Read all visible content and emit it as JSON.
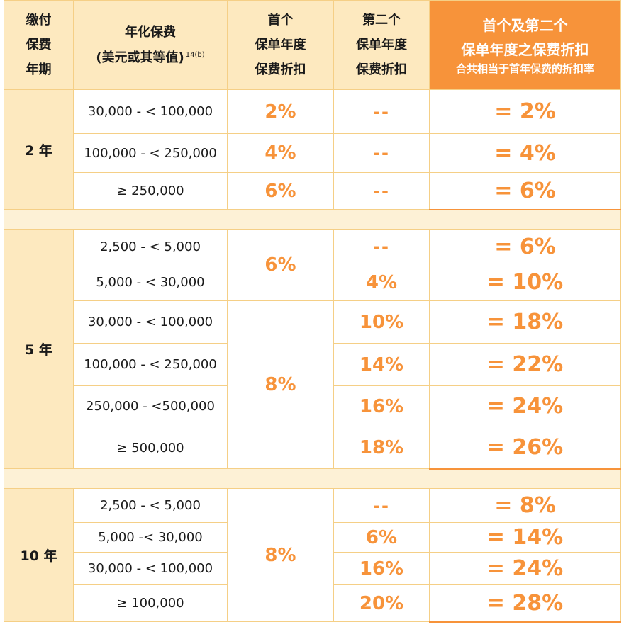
{
  "header": {
    "term_lines": [
      "缴付",
      "保费",
      "年期"
    ],
    "premium_line1": "年化保费",
    "premium_line2": "(美元或其等值)",
    "premium_note": "14(b)",
    "first_lines": [
      "首个",
      "保单年度",
      "保费折扣"
    ],
    "second_lines": [
      "第二个",
      "保单年度",
      "保费折扣"
    ],
    "combined_line1": "首个及第二个",
    "combined_line2": "保单年度之保费折扣",
    "combined_line3": "合共相当于首年保费的折扣率"
  },
  "sections": [
    {
      "term": "2 年",
      "rows": [
        {
          "range": "30,000 - < 100,000",
          "first": "2%",
          "second": "--",
          "total": "= 2%"
        },
        {
          "range": "100,000 - < 250,000",
          "first": "4%",
          "second": "--",
          "total": "= 4%"
        },
        {
          "range": "≥ 250,000",
          "first": "6%",
          "second": "--",
          "total": "= 6%"
        }
      ]
    },
    {
      "term": "5 年",
      "first_groups": [
        "6%",
        "8%"
      ],
      "rows": [
        {
          "range": "2,500 - < 5,000",
          "second": "--",
          "total": "= 6%"
        },
        {
          "range": "5,000 - < 30,000",
          "second": "4%",
          "total": "= 10%"
        },
        {
          "range": "30,000 - < 100,000",
          "second": "10%",
          "total": "= 18%"
        },
        {
          "range": "100,000 - < 250,000",
          "second": "14%",
          "total": "= 22%"
        },
        {
          "range": "250,000 - <500,000",
          "second": "16%",
          "total": "= 24%"
        },
        {
          "range": "≥ 500,000",
          "second": "18%",
          "total": "= 26%"
        }
      ]
    },
    {
      "term": "10 年",
      "first": "8%",
      "rows": [
        {
          "range": "2,500 - < 5,000",
          "second": "--",
          "total": "= 8%"
        },
        {
          "range": "5,000 -< 30,000",
          "second": "6%",
          "total": "= 14%"
        },
        {
          "range": "30,000 - < 100,000",
          "second": "16%",
          "total": "= 24%"
        },
        {
          "range": "≥ 100,000",
          "second": "20%",
          "total": "= 28%"
        }
      ]
    }
  ],
  "colors": {
    "accent": "#f7933a",
    "header_bg": "#fde9bf",
    "border": "#f5cf86"
  }
}
